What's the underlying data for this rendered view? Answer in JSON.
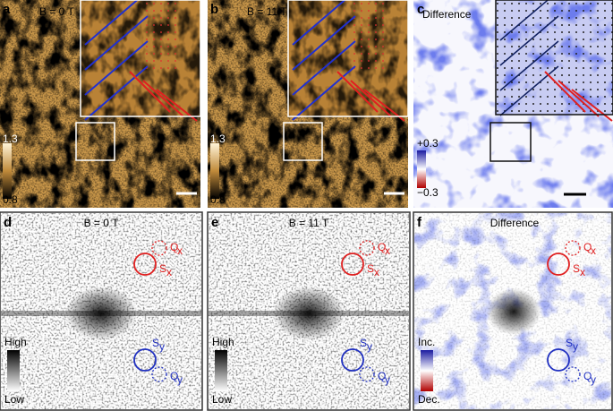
{
  "panels": [
    {
      "letter": "a",
      "title": "B = 0 T",
      "scale_top": "1.3",
      "scale_bottom": "0.8"
    },
    {
      "letter": "b",
      "title": "B = 11 T",
      "scale_top": "1.3",
      "scale_bottom": "0.8"
    },
    {
      "letter": "c",
      "title": "Difference",
      "scale_top": "+0.3",
      "scale_bottom": "−0.3"
    },
    {
      "letter": "d",
      "title": "B = 0 T",
      "scale_top": "High",
      "scale_bottom": "Low",
      "peaks": [
        {
          "name": "Q",
          "sub": "x"
        },
        {
          "name": "S",
          "sub": "x"
        },
        {
          "name": "S",
          "sub": "y"
        },
        {
          "name": "Q",
          "sub": "y"
        }
      ]
    },
    {
      "letter": "e",
      "title": "B = 11 T",
      "scale_top": "High",
      "scale_bottom": "Low",
      "peaks": [
        {
          "name": "Q",
          "sub": "x"
        },
        {
          "name": "S",
          "sub": "x"
        },
        {
          "name": "S",
          "sub": "y"
        },
        {
          "name": "Q",
          "sub": "y"
        }
      ]
    },
    {
      "letter": "f",
      "title": "Difference",
      "scale_top": "Inc.",
      "scale_bottom": "Dec.",
      "peaks": [
        {
          "name": "Q",
          "sub": "x"
        },
        {
          "name": "S",
          "sub": "x"
        },
        {
          "name": "S",
          "sub": "y"
        },
        {
          "name": "Q",
          "sub": "y"
        }
      ]
    }
  ]
}
